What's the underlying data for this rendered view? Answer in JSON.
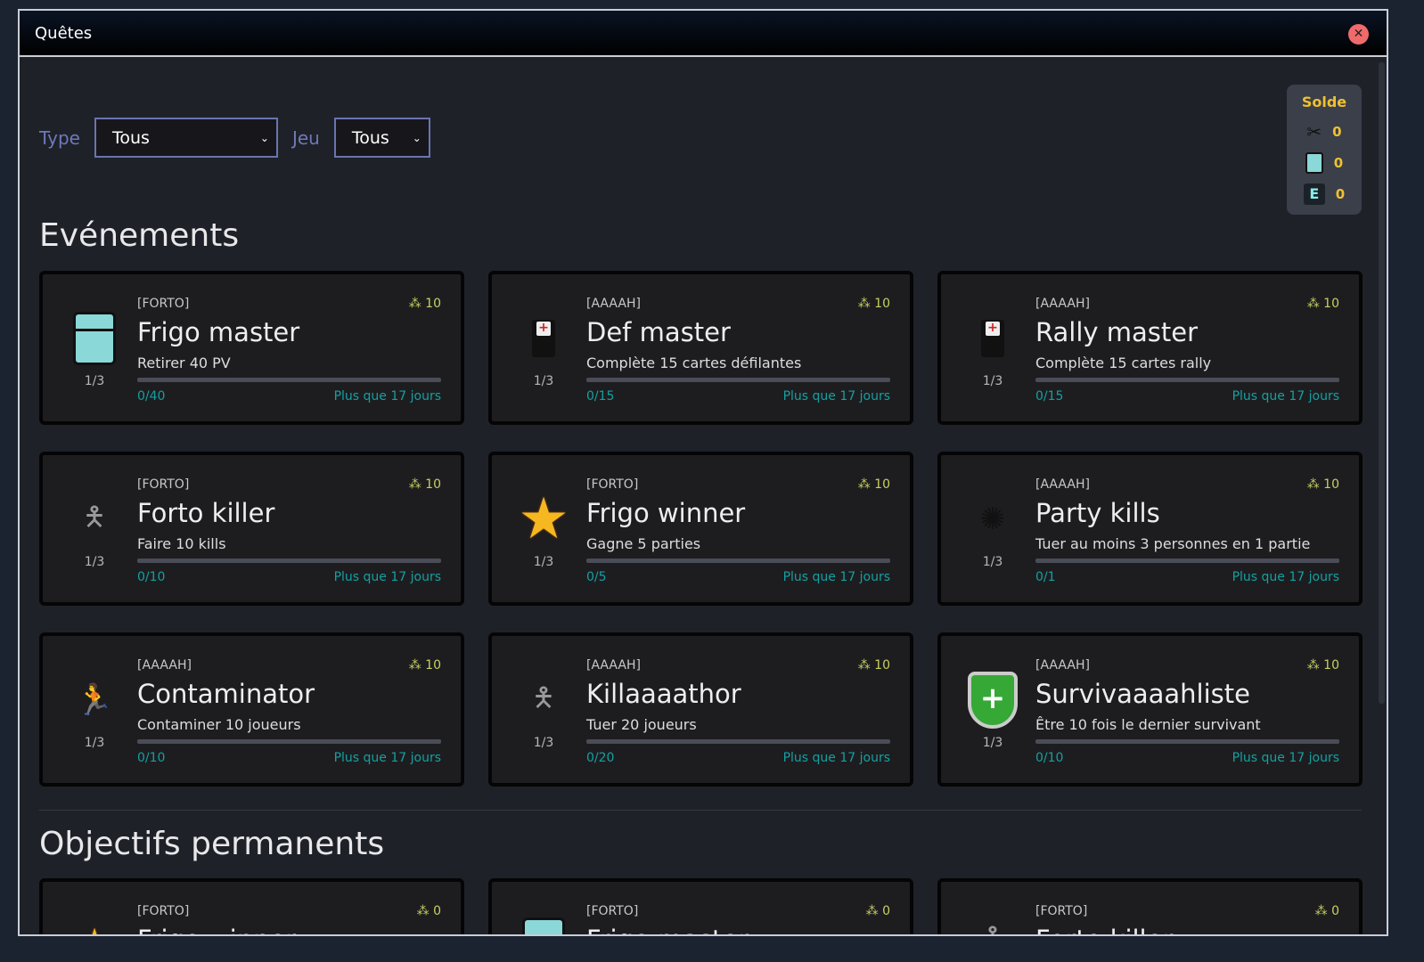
{
  "window": {
    "title": "Quêtes",
    "close_icon": "close-icon"
  },
  "filters": {
    "type_label": "Type",
    "type_value": "Tous",
    "game_label": "Jeu",
    "game_value": "Tous"
  },
  "balance": {
    "title": "Solde",
    "items": [
      {
        "icon": "scissors-icon",
        "value": "0"
      },
      {
        "icon": "fridge-icon",
        "value": "0"
      },
      {
        "icon": "e-token-icon",
        "value": "0"
      }
    ]
  },
  "events": {
    "title": "Evénements",
    "cards": [
      {
        "icon": "fridge",
        "tag": "[FORTO]",
        "points": "10",
        "name": "Frigo master",
        "desc": "Retirer 40 PV",
        "step": "1/3",
        "progress": "0/40",
        "progress_fraction": 0,
        "expiry": "Plus que 17 jours"
      },
      {
        "icon": "medkit",
        "tag": "[AAAAH]",
        "points": "10",
        "name": "Def master",
        "desc": "Complète 15 cartes défilantes",
        "step": "1/3",
        "progress": "0/15",
        "progress_fraction": 0,
        "expiry": "Plus que 17 jours"
      },
      {
        "icon": "medkit",
        "tag": "[AAAAH]",
        "points": "10",
        "name": "Rally master",
        "desc": "Complète 15 cartes rally",
        "step": "1/3",
        "progress": "0/15",
        "progress_fraction": 0,
        "expiry": "Plus que 17 jours"
      },
      {
        "icon": "soldier",
        "tag": "[FORTO]",
        "points": "10",
        "name": "Forto killer",
        "desc": "Faire 10 kills",
        "step": "1/3",
        "progress": "0/10",
        "progress_fraction": 0,
        "expiry": "Plus que 17 jours"
      },
      {
        "icon": "star",
        "tag": "[FORTO]",
        "points": "10",
        "name": "Frigo winner",
        "desc": "Gagne 5 parties",
        "step": "1/3",
        "progress": "0/5",
        "progress_fraction": 0,
        "expiry": "Plus que 17 jours"
      },
      {
        "icon": "splat",
        "tag": "[AAAAH]",
        "points": "10",
        "name": "Party kills",
        "desc": "Tuer au moins 3 personnes en 1 partie",
        "step": "1/3",
        "progress": "0/1",
        "progress_fraction": 0,
        "expiry": "Plus que 17 jours"
      },
      {
        "icon": "zombie",
        "tag": "[AAAAH]",
        "points": "10",
        "name": "Contaminator",
        "desc": "Contaminer 10 joueurs",
        "step": "1/3",
        "progress": "0/10",
        "progress_fraction": 0,
        "expiry": "Plus que 17 jours"
      },
      {
        "icon": "soldier",
        "tag": "[AAAAH]",
        "points": "10",
        "name": "Killaaaathor",
        "desc": "Tuer 20 joueurs",
        "step": "1/3",
        "progress": "0/20",
        "progress_fraction": 0,
        "expiry": "Plus que 17 jours"
      },
      {
        "icon": "shield",
        "tag": "[AAAAH]",
        "points": "10",
        "name": "Survivaaaahliste",
        "desc": "Être 10 fois le dernier survivant",
        "step": "1/3",
        "progress": "0/10",
        "progress_fraction": 0,
        "expiry": "Plus que 17 jours"
      }
    ]
  },
  "permanent": {
    "title": "Objectifs permanents",
    "cards": [
      {
        "icon": "star",
        "tag": "[FORTO]",
        "points": "0",
        "name": "Frigo winner"
      },
      {
        "icon": "fridge",
        "tag": "[FORTO]",
        "points": "0",
        "name": "Frigo master"
      },
      {
        "icon": "soldier",
        "tag": "[FORTO]",
        "points": "0",
        "name": "Forto killer"
      }
    ]
  },
  "colors": {
    "accent": "#14a0a0",
    "points": "#c8d060",
    "balance": "#f0c030",
    "close": "#ef6b6b"
  }
}
